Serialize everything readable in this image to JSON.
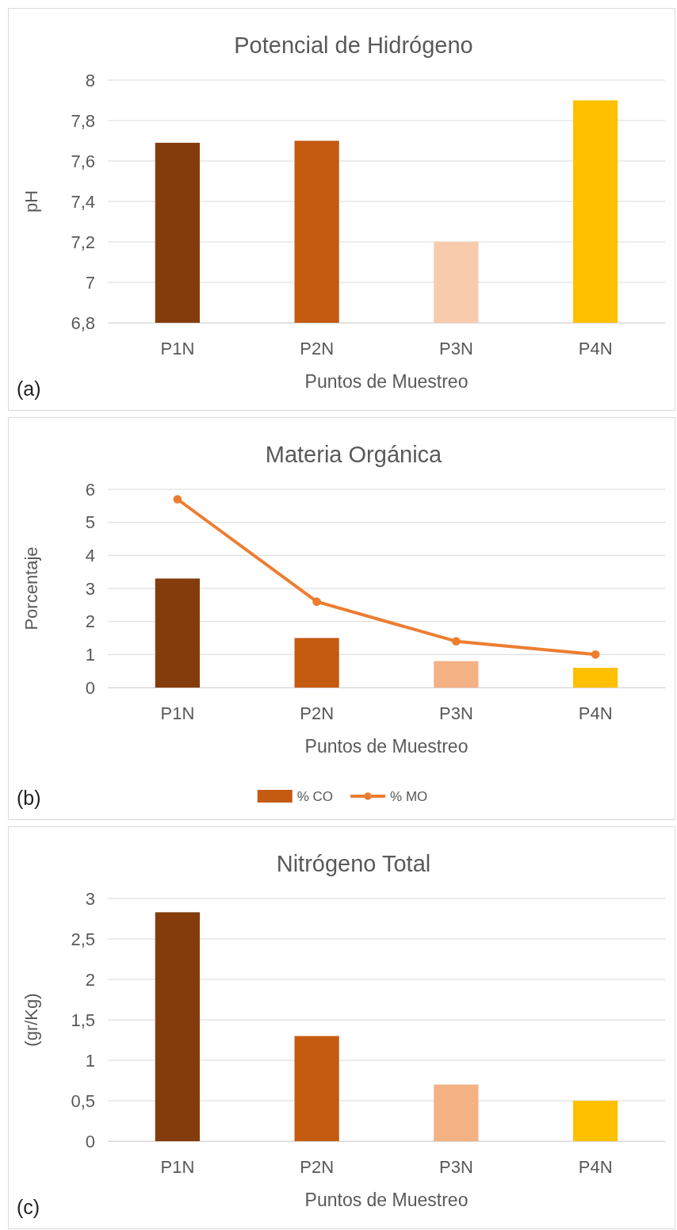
{
  "chart_data": [
    {
      "type": "bar",
      "title": "Potencial de Hidrógeno",
      "xlabel": "Puntos de Muestreo",
      "ylabel": "pH",
      "categories": [
        "P1N",
        "P2N",
        "P3N",
        "P4N"
      ],
      "values": [
        7.69,
        7.7,
        7.2,
        7.9
      ],
      "colors": [
        "#843c0c",
        "#c55a11",
        "#f8cbad",
        "#ffc000"
      ],
      "ylim": [
        6.8,
        8
      ],
      "yticks": [
        {
          "value": 6.8,
          "label": "6,8"
        },
        7,
        {
          "value": 7.2,
          "label": "7,2"
        },
        {
          "value": 7.4,
          "label": "7,4"
        },
        {
          "value": 7.6,
          "label": "7,6"
        },
        {
          "value": 7.8,
          "label": "7,8"
        },
        8
      ],
      "grid": "y",
      "annotations": [
        "(a)"
      ]
    },
    {
      "type": "bar",
      "title": "Materia Orgánica",
      "xlabel": "Puntos de Muestreo",
      "ylabel": "Porcentaje",
      "categories": [
        "P1N",
        "P2N",
        "P3N",
        "P4N"
      ],
      "series": [
        {
          "name": "% CO",
          "type": "bar",
          "color": "#c55a11",
          "colors": [
            "#843c0c",
            "#c55a11",
            "#f4b183",
            "#ffc000"
          ],
          "values": [
            3.3,
            1.5,
            0.8,
            0.6
          ]
        },
        {
          "name": "% MO",
          "type": "line",
          "color": "#ed7d31",
          "values": [
            5.7,
            2.6,
            1.4,
            1.0
          ]
        }
      ],
      "marker": "circle",
      "ylim": [
        0,
        6
      ],
      "yticks": [
        0,
        1,
        2,
        3,
        4,
        5,
        6
      ],
      "grid": "y",
      "legend": "bottom",
      "annotations": [
        "(b)"
      ]
    },
    {
      "type": "bar",
      "title": "Nitrógeno Total",
      "xlabel": "Puntos de Muestreo",
      "ylabel": "(gr/Kg)",
      "categories": [
        "P1N",
        "P2N",
        "P3N",
        "P4N"
      ],
      "values": [
        2.83,
        1.3,
        0.7,
        0.5
      ],
      "colors": [
        "#843c0c",
        "#c55a11",
        "#f4b183",
        "#ffc000"
      ],
      "ylim": [
        0,
        3
      ],
      "yticks": [
        0,
        {
          "value": 0.5,
          "label": "0,5"
        },
        1,
        {
          "value": 1.5,
          "label": "1,5"
        },
        2,
        {
          "value": 2.5,
          "label": "2,5"
        },
        3
      ],
      "grid": "y",
      "annotations": [
        "(c)"
      ]
    }
  ]
}
